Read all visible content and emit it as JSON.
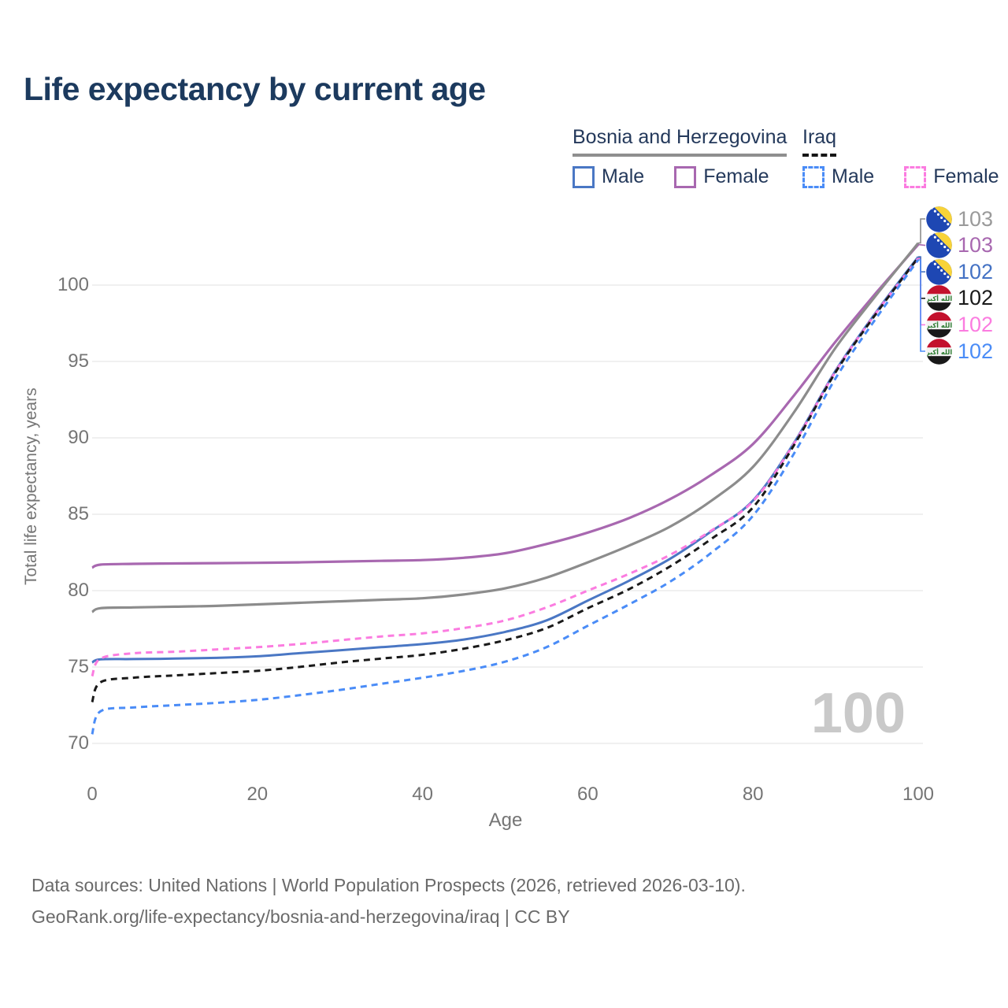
{
  "title": "Life expectancy by current age",
  "legend": {
    "groups": [
      {
        "label": "Bosnia and Herzegovina",
        "style": "solid",
        "items": [
          {
            "label": "Male",
            "color": "#4a77c4"
          },
          {
            "label": "Female",
            "color": "#a868b0"
          }
        ]
      },
      {
        "label": "Iraq",
        "style": "dashed",
        "items": [
          {
            "label": "Male",
            "color": "#4a8cf7"
          },
          {
            "label": "Female",
            "color": "#fb7ce0"
          }
        ]
      }
    ]
  },
  "x_axis": {
    "label": "Age",
    "ticks": [
      0,
      20,
      40,
      60,
      80,
      100
    ]
  },
  "y_axis": {
    "label": "Total life expectancy, years",
    "ticks": [
      70,
      75,
      80,
      85,
      90,
      95,
      100
    ]
  },
  "watermark": "100",
  "end_labels": [
    {
      "flag": "bosnia",
      "value": "103",
      "color": "#9a9a9a"
    },
    {
      "flag": "bosnia",
      "value": "103",
      "color": "#a868b0"
    },
    {
      "flag": "bosnia",
      "value": "102",
      "color": "#4472c4"
    },
    {
      "flag": "iraq",
      "value": "102",
      "color": "#1a1a1a"
    },
    {
      "flag": "iraq",
      "value": "102",
      "color": "#fb7ce0"
    },
    {
      "flag": "iraq",
      "value": "102",
      "color": "#4a8cf7"
    }
  ],
  "footer": {
    "line1": "Data sources: United Nations | World Population Prospects (2026, retrieved 2026-03-10).",
    "line2": "GeoRank.org/life-expectancy/bosnia-and-herzegovina/iraq | CC BY"
  },
  "colors": {
    "title": "#1c3a5e",
    "axis_text": "#757575",
    "gridline": "#e7e7e7",
    "watermark": "#c9c9c9",
    "footer": "#6a6a6a"
  },
  "chart_data": {
    "type": "line",
    "title": "Life expectancy by current age",
    "xlabel": "Age",
    "ylabel": "Total life expectancy, years",
    "xlim": [
      0,
      100
    ],
    "ylim": [
      68.5,
      104.5
    ],
    "grid": "horizontal",
    "legend_position": "top-right",
    "x": [
      0,
      1,
      5,
      10,
      15,
      20,
      25,
      30,
      35,
      40,
      45,
      50,
      55,
      60,
      65,
      70,
      75,
      80,
      85,
      90,
      95,
      100
    ],
    "series": [
      {
        "name": "Bosnia and Herzegovina (total)",
        "country": "Bosnia and Herzegovina",
        "sex": "total",
        "color": "#8c8c8c",
        "dash": null,
        "width": 3.2,
        "end_label": "103",
        "values": [
          78.6,
          78.85,
          78.9,
          78.95,
          79.0,
          79.1,
          79.2,
          79.3,
          79.4,
          79.5,
          79.75,
          80.15,
          80.85,
          81.85,
          82.95,
          84.2,
          85.9,
          88.1,
          91.7,
          95.9,
          99.4,
          102.75
        ]
      },
      {
        "name": "Bosnia and Herzegovina Female",
        "country": "Bosnia and Herzegovina",
        "sex": "female",
        "color": "#a868b0",
        "dash": null,
        "width": 3.2,
        "end_label": "103",
        "values": [
          81.5,
          81.7,
          81.75,
          81.78,
          81.8,
          81.82,
          81.85,
          81.9,
          81.95,
          82.0,
          82.15,
          82.45,
          83.05,
          83.8,
          84.75,
          86.0,
          87.6,
          89.6,
          92.8,
          96.3,
          99.55,
          102.65
        ]
      },
      {
        "name": "Bosnia and Herzegovina Male",
        "country": "Bosnia and Herzegovina",
        "sex": "male",
        "color": "#4a77c4",
        "dash": null,
        "width": 3.0,
        "end_label": "102",
        "values": [
          75.3,
          75.5,
          75.52,
          75.55,
          75.6,
          75.7,
          75.9,
          76.1,
          76.3,
          76.5,
          76.8,
          77.3,
          78.05,
          79.35,
          80.65,
          82.1,
          83.9,
          85.9,
          89.7,
          94.4,
          98.3,
          101.85
        ]
      },
      {
        "name": "Iraq (total)",
        "country": "Iraq",
        "sex": "total",
        "color": "#1a1a1a",
        "dash": "8 6",
        "width": 3.0,
        "end_label": "102",
        "values": [
          72.7,
          74.0,
          74.3,
          74.45,
          74.6,
          74.75,
          75.0,
          75.3,
          75.55,
          75.8,
          76.2,
          76.75,
          77.55,
          78.85,
          80.1,
          81.6,
          83.4,
          85.45,
          89.55,
          94.3,
          98.2,
          101.8
        ]
      },
      {
        "name": "Iraq Female",
        "country": "Iraq",
        "sex": "female",
        "color": "#fb7ce0",
        "dash": "8 6",
        "width": 3.0,
        "end_label": "102",
        "values": [
          74.4,
          75.55,
          75.9,
          76.0,
          76.15,
          76.3,
          76.5,
          76.75,
          77.0,
          77.2,
          77.55,
          78.05,
          78.9,
          80.0,
          81.1,
          82.35,
          83.95,
          85.85,
          89.65,
          94.35,
          98.25,
          101.75
        ]
      },
      {
        "name": "Iraq Male",
        "country": "Iraq",
        "sex": "male",
        "color": "#4a8cf7",
        "dash": "8 6",
        "width": 3.0,
        "end_label": "102",
        "values": [
          70.6,
          72.1,
          72.35,
          72.5,
          72.65,
          72.85,
          73.15,
          73.5,
          73.9,
          74.3,
          74.75,
          75.35,
          76.3,
          77.7,
          79.1,
          80.6,
          82.5,
          84.9,
          89.0,
          93.9,
          97.9,
          101.65
        ]
      }
    ]
  }
}
